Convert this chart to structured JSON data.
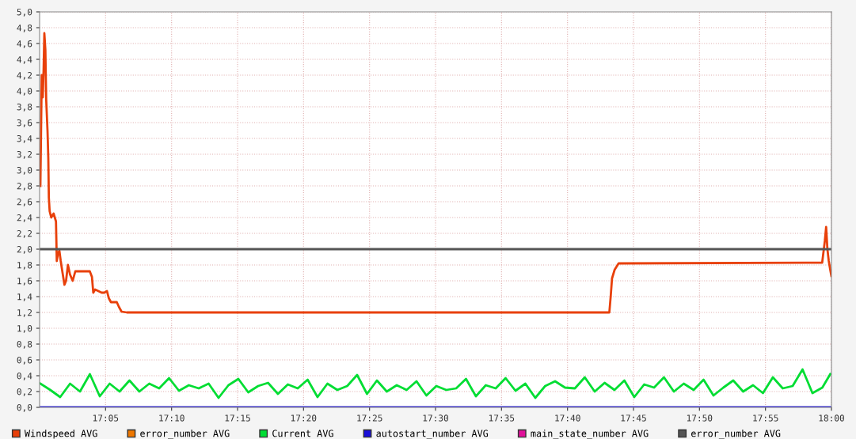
{
  "chart_data": {
    "type": "line",
    "xlim": [
      17.0,
      18.0
    ],
    "xticks": [
      {
        "value": 17.0833,
        "label": "17:05"
      },
      {
        "value": 17.1667,
        "label": "17:10"
      },
      {
        "value": 17.25,
        "label": "17:15"
      },
      {
        "value": 17.3333,
        "label": "17:20"
      },
      {
        "value": 17.4167,
        "label": "17:25"
      },
      {
        "value": 17.5,
        "label": "17:30"
      },
      {
        "value": 17.5833,
        "label": "17:35"
      },
      {
        "value": 17.6667,
        "label": "17:40"
      },
      {
        "value": 17.75,
        "label": "17:45"
      },
      {
        "value": 17.8333,
        "label": "17:50"
      },
      {
        "value": 17.9167,
        "label": "17:55"
      },
      {
        "value": 18.0,
        "label": "18:00"
      }
    ],
    "ylim": [
      0,
      5.0
    ],
    "yticks": [
      {
        "value": 0,
        "label": "0,0"
      },
      {
        "value": 0.2,
        "label": "0,2"
      },
      {
        "value": 0.4,
        "label": "0,4"
      },
      {
        "value": 0.6,
        "label": "0,6"
      },
      {
        "value": 0.8,
        "label": "0,8"
      },
      {
        "value": 1.0,
        "label": "1,0"
      },
      {
        "value": 1.2,
        "label": "1,2"
      },
      {
        "value": 1.4,
        "label": "1,4"
      },
      {
        "value": 1.6,
        "label": "1,6"
      },
      {
        "value": 1.8,
        "label": "1,8"
      },
      {
        "value": 2.0,
        "label": "2,0"
      },
      {
        "value": 2.2,
        "label": "2,2"
      },
      {
        "value": 2.4,
        "label": "2,4"
      },
      {
        "value": 2.6,
        "label": "2,6"
      },
      {
        "value": 2.8,
        "label": "2,8"
      },
      {
        "value": 3.0,
        "label": "3,0"
      },
      {
        "value": 3.2,
        "label": "3,2"
      },
      {
        "value": 3.4,
        "label": "3,4"
      },
      {
        "value": 3.6,
        "label": "3,6"
      },
      {
        "value": 3.8,
        "label": "3,8"
      },
      {
        "value": 4.0,
        "label": "4,0"
      },
      {
        "value": 4.2,
        "label": "4,2"
      },
      {
        "value": 4.4,
        "label": "4,4"
      },
      {
        "value": 4.6,
        "label": "4,6"
      },
      {
        "value": 4.8,
        "label": "4,8"
      },
      {
        "value": 5.0,
        "label": "5,0"
      }
    ],
    "grid": true,
    "legend": "bottom",
    "marker": "none",
    "line_style": "solid",
    "series": [
      {
        "name": "Windspeed AVG",
        "color": "#e8400a",
        "x": [
          17.001,
          17.0027,
          17.004,
          17.005,
          17.006,
          17.0073,
          17.0083,
          17.01,
          17.011,
          17.0117,
          17.0127,
          17.0147,
          17.0177,
          17.0207,
          17.0217,
          17.0233,
          17.025,
          17.0267,
          17.029,
          17.0314,
          17.0334,
          17.0358,
          17.0384,
          17.0418,
          17.0451,
          17.0634,
          17.0661,
          17.0678,
          17.0701,
          17.0784,
          17.0818,
          17.0851,
          17.0874,
          17.0901,
          17.0975,
          17.1002,
          17.1035,
          17.1102,
          17.7195,
          17.7212,
          17.7229,
          17.7262,
          17.7312,
          17.9883,
          17.9916,
          17.9933,
          17.9949,
          17.9966,
          17.9983,
          17.9999
        ],
        "values": [
          2.8,
          4.2,
          3.92,
          4.25,
          4.73,
          4.52,
          3.9,
          3.5,
          3.15,
          2.65,
          2.48,
          2.4,
          2.45,
          2.35,
          1.85,
          1.95,
          1.98,
          1.85,
          1.7,
          1.55,
          1.6,
          1.8,
          1.68,
          1.6,
          1.72,
          1.72,
          1.65,
          1.45,
          1.49,
          1.45,
          1.45,
          1.47,
          1.38,
          1.33,
          1.33,
          1.27,
          1.21,
          1.2,
          1.2,
          1.4,
          1.63,
          1.74,
          1.82,
          1.83,
          2.1,
          2.28,
          2.0,
          1.85,
          1.75,
          1.66
        ]
      },
      {
        "name": "error_number AVG",
        "color": "#ee7700"
      },
      {
        "name": "Current AVG",
        "color": "#00dd33",
        "x": [
          17.001,
          17.0135,
          17.026,
          17.0385,
          17.051,
          17.0635,
          17.076,
          17.0885,
          17.101,
          17.1135,
          17.126,
          17.1385,
          17.151,
          17.1635,
          17.176,
          17.1885,
          17.201,
          17.2135,
          17.226,
          17.2385,
          17.251,
          17.2635,
          17.276,
          17.2885,
          17.301,
          17.3135,
          17.326,
          17.3385,
          17.351,
          17.3635,
          17.376,
          17.3885,
          17.401,
          17.4135,
          17.426,
          17.4385,
          17.451,
          17.4635,
          17.476,
          17.4885,
          17.501,
          17.5135,
          17.526,
          17.5385,
          17.551,
          17.5635,
          17.576,
          17.5885,
          17.601,
          17.6135,
          17.626,
          17.6385,
          17.651,
          17.6635,
          17.676,
          17.6885,
          17.701,
          17.7135,
          17.726,
          17.7385,
          17.751,
          17.7635,
          17.776,
          17.7885,
          17.801,
          17.8135,
          17.826,
          17.8385,
          17.851,
          17.8635,
          17.876,
          17.8885,
          17.901,
          17.9135,
          17.926,
          17.9385,
          17.951,
          17.9635,
          17.976,
          17.9885,
          17.9985
        ],
        "values": [
          0.3,
          0.22,
          0.13,
          0.3,
          0.2,
          0.42,
          0.14,
          0.3,
          0.2,
          0.34,
          0.2,
          0.3,
          0.24,
          0.37,
          0.21,
          0.28,
          0.24,
          0.3,
          0.12,
          0.28,
          0.36,
          0.19,
          0.27,
          0.31,
          0.17,
          0.29,
          0.24,
          0.35,
          0.13,
          0.3,
          0.22,
          0.27,
          0.41,
          0.17,
          0.34,
          0.2,
          0.28,
          0.22,
          0.33,
          0.15,
          0.27,
          0.22,
          0.24,
          0.36,
          0.14,
          0.28,
          0.24,
          0.37,
          0.21,
          0.3,
          0.12,
          0.27,
          0.33,
          0.25,
          0.24,
          0.38,
          0.2,
          0.31,
          0.22,
          0.34,
          0.13,
          0.29,
          0.25,
          0.38,
          0.2,
          0.3,
          0.22,
          0.35,
          0.15,
          0.25,
          0.34,
          0.2,
          0.28,
          0.18,
          0.38,
          0.24,
          0.27,
          0.48,
          0.18,
          0.25,
          0.42
        ]
      },
      {
        "name": "autostart_number AVG",
        "color": "#1a0fd8",
        "x": [
          17.0,
          18.0
        ],
        "values": [
          0,
          0
        ]
      },
      {
        "name": "main_state_number AVG",
        "color": "#e0109a"
      },
      {
        "name": "error_number AVG",
        "color": "#555555",
        "x": [
          17.0,
          18.0
        ],
        "values": [
          2.0,
          2.0
        ]
      }
    ]
  }
}
